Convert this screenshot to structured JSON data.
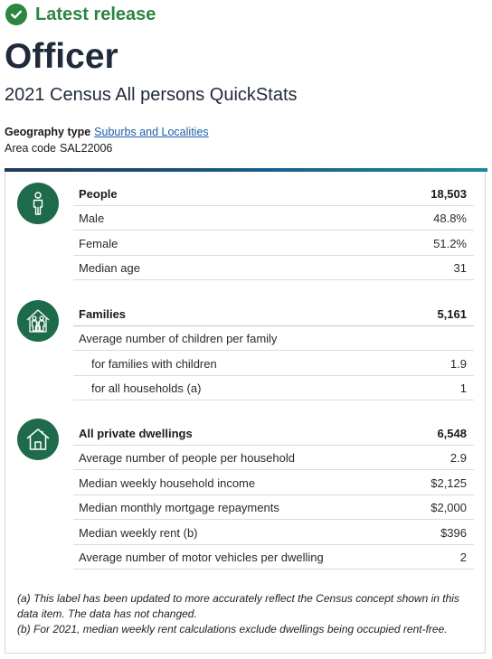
{
  "badge": {
    "label": "Latest release",
    "icon": "check-circle-icon",
    "color": "#2e8540"
  },
  "title": "Officer",
  "subtitle": "2021 Census All persons QuickStats",
  "geography": {
    "label": "Geography type",
    "value": "Suburbs and Localities"
  },
  "area": {
    "label": "Area code",
    "value": "SAL22006"
  },
  "sections": {
    "people": {
      "icon": "person-icon",
      "header": {
        "label": "People",
        "value": "18,503"
      },
      "rows": [
        {
          "label": "Male",
          "value": "48.8%"
        },
        {
          "label": "Female",
          "value": "51.2%"
        },
        {
          "label": "Median age",
          "value": "31"
        }
      ]
    },
    "families": {
      "icon": "family-icon",
      "header": {
        "label": "Families",
        "value": "5,161"
      },
      "rows": [
        {
          "label": "Average number of children per family",
          "value": ""
        },
        {
          "label": "for families with children",
          "value": "1.9"
        },
        {
          "label": "for all households (a)",
          "value": "1"
        }
      ]
    },
    "dwellings": {
      "icon": "house-icon",
      "header": {
        "label": "All private dwellings",
        "value": "6,548"
      },
      "rows": [
        {
          "label": "Average number of people per household",
          "value": "2.9"
        },
        {
          "label": "Median weekly household income",
          "value": "$2,125"
        },
        {
          "label": "Median monthly mortgage repayments",
          "value": "$2,000"
        },
        {
          "label": "Median weekly rent (b)",
          "value": "$396"
        },
        {
          "label": "Average number of motor vehicles per dwelling",
          "value": "2"
        }
      ]
    }
  },
  "footnotes": {
    "a": "(a) This label has been updated to more accurately reflect the Census concept shown in this data item. The data has not changed.",
    "b": "(b) For 2021, median weekly rent calculations exclude dwellings being occupied rent-free."
  },
  "colors": {
    "accent": "#1e6b4b",
    "link": "#1b5ea8",
    "title": "#1f2a3a"
  }
}
